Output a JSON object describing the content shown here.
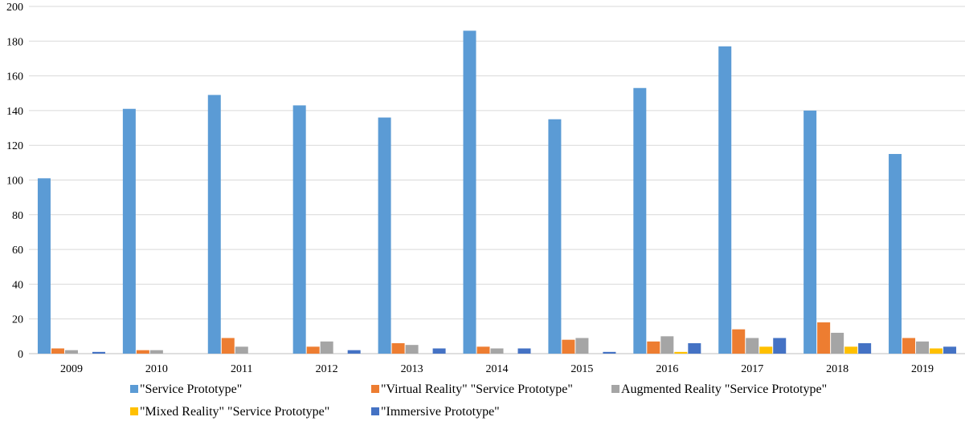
{
  "chart_data": {
    "type": "bar",
    "title": "",
    "xlabel": "",
    "ylabel": "",
    "ylim": [
      0,
      200
    ],
    "yticks": [
      0,
      20,
      40,
      60,
      80,
      100,
      120,
      140,
      160,
      180,
      200
    ],
    "grid": "horizontal",
    "legend_position": "bottom",
    "categories": [
      "2009",
      "2010",
      "2011",
      "2012",
      "2013",
      "2014",
      "2015",
      "2016",
      "2017",
      "2018",
      "2019"
    ],
    "series": [
      {
        "name": "\"Service Prototype\"",
        "color": "#5B9BD5",
        "values": [
          101,
          141,
          149,
          143,
          136,
          186,
          135,
          153,
          177,
          140,
          115
        ]
      },
      {
        "name": "\"Virtual Reality\" \"Service Prototype\"",
        "color": "#ED7D31",
        "values": [
          3,
          2,
          9,
          4,
          6,
          4,
          8,
          7,
          14,
          18,
          9
        ]
      },
      {
        "name": "Augmented Reality \"Service Prototype\"",
        "color": "#A5A5A5",
        "values": [
          2,
          2,
          4,
          7,
          5,
          3,
          9,
          10,
          9,
          12,
          7
        ]
      },
      {
        "name": "\"Mixed Reality\" \"Service Prototype\"",
        "color": "#FFC000",
        "values": [
          0,
          0,
          0,
          0,
          0,
          0,
          0,
          1,
          4,
          4,
          3
        ]
      },
      {
        "name": "\"Immersive Prototype\"",
        "color": "#4472C4",
        "values": [
          1,
          0,
          0,
          2,
          3,
          3,
          1,
          6,
          9,
          6,
          4
        ]
      }
    ]
  }
}
